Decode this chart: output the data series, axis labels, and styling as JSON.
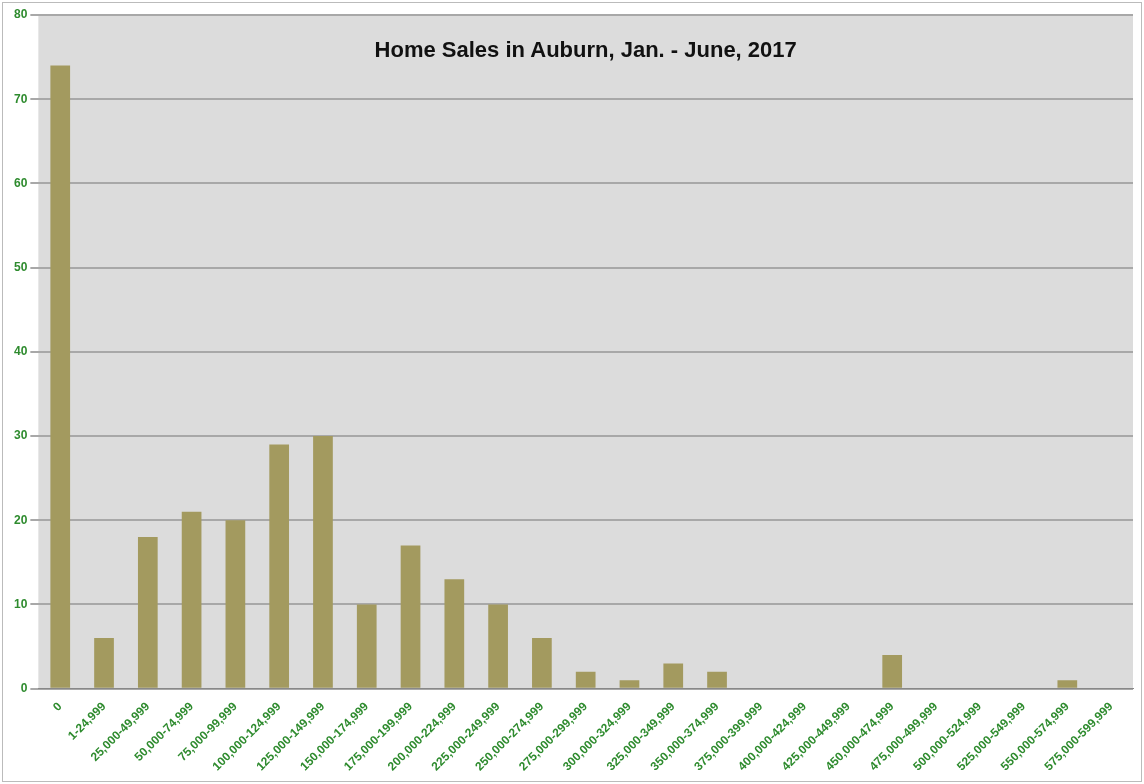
{
  "chart_data": {
    "type": "bar",
    "title": "Home Sales in Auburn, Jan. - June, 2017",
    "categories": [
      "0",
      "1-24,999",
      "25,000-49,999",
      "50,000-74,999",
      "75,000-99,999",
      "100,000-124,999",
      "125,000-149,999",
      "150,000-174,999",
      "175,000-199,999",
      "200,000-224,999",
      "225,000-249,999",
      "250,000-274,999",
      "275,000-299,999",
      "300,000-324,999",
      "325,000-349,999",
      "350,000-374,999",
      "375,000-399,999",
      "400,000-424,999",
      "425,000-449,999",
      "450,000-474,999",
      "475,000-499,999",
      "500,000-524,999",
      "525,000-549,999",
      "550,000-574,999",
      "575,000-599,999"
    ],
    "values": [
      74,
      6,
      18,
      21,
      20,
      29,
      30,
      10,
      17,
      13,
      10,
      6,
      2,
      1,
      3,
      2,
      0,
      0,
      0,
      4,
      0,
      0,
      0,
      1,
      0
    ],
    "color": "#a39a5f",
    "ylim": [
      0,
      80
    ],
    "yticks": [
      0,
      10,
      20,
      30,
      40,
      50,
      60,
      70,
      80
    ],
    "grid": "y",
    "legend": false
  }
}
